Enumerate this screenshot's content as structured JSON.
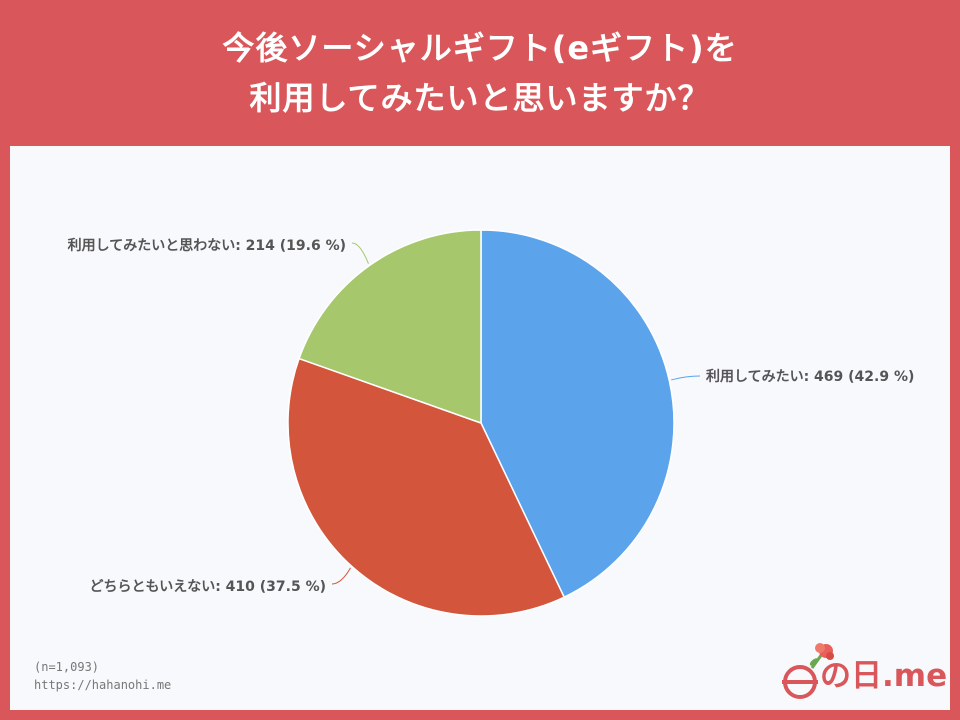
{
  "header": {
    "title_line1": "今後ソーシャルギフト(eギフト)を",
    "title_line2": "利用してみたいと思いますか？"
  },
  "chart_data": {
    "type": "pie",
    "slices": [
      {
        "label": "利用してみたい",
        "value": 469,
        "percent": 42.9,
        "color": "#5ba3eb",
        "display": "利用してみたい: 469 (42.9 %)"
      },
      {
        "label": "どちらともいえない",
        "value": 410,
        "percent": 37.5,
        "color": "#d2553c",
        "display": "どちらともいえない: 410 (37.5 %)"
      },
      {
        "label": "利用してみたいと思わない",
        "value": 214,
        "percent": 19.6,
        "color": "#a6c76c",
        "display": "利用してみたいと思わない: 214 (19.6 %)"
      }
    ],
    "start_angle": "12 o'clock",
    "direction": "clockwise"
  },
  "footer": {
    "n_note": "(n=1,093)",
    "url": "https://hahanohi.me"
  },
  "logo": {
    "text": "の日.me",
    "color": "#d9575a"
  }
}
